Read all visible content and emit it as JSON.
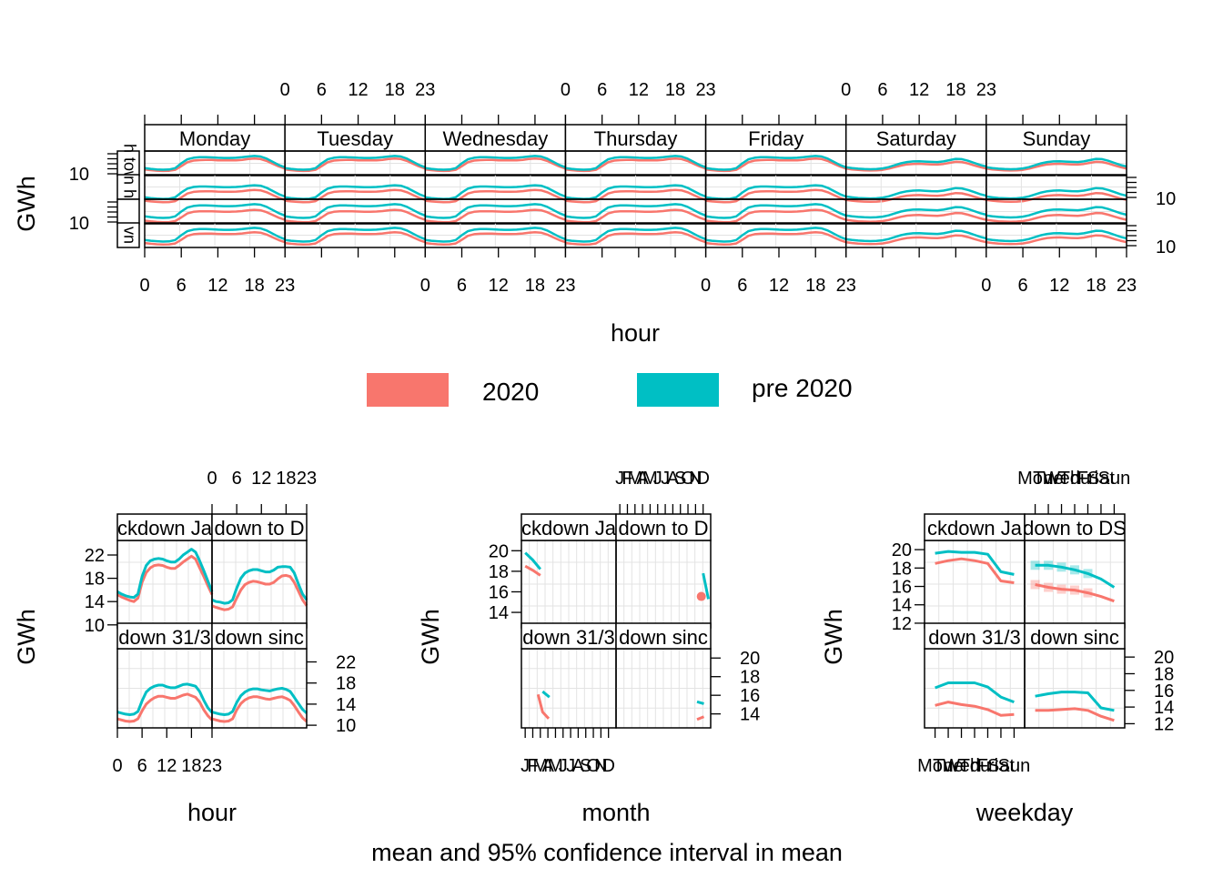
{
  "colors": {
    "y2020": "#F8766D",
    "pre2020": "#00BFC4",
    "strip_bg": "#ffffff",
    "grid": "#e3e3e3"
  },
  "legend": {
    "items": [
      {
        "label": "2020",
        "color": "#F8766D"
      },
      {
        "label": "pre 2020",
        "color": "#00BFC4"
      }
    ]
  },
  "caption": "mean and 95% confidence interval in mean",
  "chart_data": [
    {
      "id": "top",
      "type": "line",
      "xlabel": "hour",
      "ylabel": "GWh",
      "x_ticks": [
        0,
        6,
        12,
        18,
        23
      ],
      "y_tick_labels": [
        "10"
      ],
      "columns": [
        "Monday",
        "Tuesday",
        "Wednesday",
        "Thursday",
        "Friday",
        "Saturday",
        "Sunday"
      ],
      "rows": [
        {
          "strip_label": "h tow"
        },
        {
          "strip_label": "n h"
        },
        {
          "strip_label": ""
        },
        {
          "strip_label": "vn"
        }
      ],
      "series": [
        {
          "name": "2020",
          "color": "#F8766D"
        },
        {
          "name": "pre 2020",
          "color": "#00BFC4"
        }
      ],
      "profiles": {
        "weekday_pre": [
          15,
          14.5,
          14.2,
          14,
          14.1,
          15,
          18,
          20.5,
          21.5,
          21.8,
          21.8,
          21.7,
          21.5,
          21.4,
          21.4,
          21.5,
          21.8,
          22.3,
          22.6,
          22.3,
          21,
          19,
          17,
          15.5
        ],
        "weekday_2020": [
          14.5,
          14,
          13.7,
          13.5,
          13.6,
          14.2,
          16.5,
          19,
          20,
          20.3,
          20.4,
          20.4,
          20.2,
          20.1,
          20.1,
          20.2,
          20.5,
          21,
          21.3,
          21,
          19.8,
          18,
          16.3,
          15
        ],
        "weekend_pre": [
          15.5,
          15,
          14.6,
          14.4,
          14.3,
          14.4,
          14.8,
          15.6,
          16.8,
          18,
          18.8,
          19.2,
          19.3,
          19.1,
          18.9,
          18.8,
          19.2,
          20,
          20.8,
          20.6,
          19.6,
          18.3,
          17,
          16
        ],
        "weekend_2020": [
          15,
          14.5,
          14.1,
          13.9,
          13.8,
          13.9,
          14.2,
          14.9,
          15.9,
          16.9,
          17.6,
          17.9,
          18,
          17.8,
          17.6,
          17.5,
          17.9,
          18.6,
          19.3,
          19.1,
          18.2,
          17,
          15.9,
          15
        ]
      }
    },
    {
      "id": "hour",
      "type": "line",
      "xlabel": "hour",
      "ylabel": "GWh",
      "x_ticks": [
        0,
        6,
        12,
        18,
        23
      ],
      "y_ticks_left": [
        10,
        14,
        18,
        22
      ],
      "y_ticks_right": [
        10,
        14,
        18,
        22
      ],
      "strips": [
        "ckdown Ja",
        "down to D",
        "down 31/3",
        "down sinc"
      ],
      "series": [
        {
          "name": "2020",
          "color": "#F8766D"
        },
        {
          "name": "pre 2020",
          "color": "#00BFC4"
        }
      ],
      "panels": {
        "top_left": {
          "pre": [
            15.7,
            15.3,
            15,
            14.8,
            14.7,
            15.3,
            18.3,
            20.2,
            21,
            21.3,
            21.4,
            21.3,
            21,
            20.8,
            20.8,
            21.3,
            22,
            22.5,
            23,
            22.5,
            21,
            19.3,
            17.5,
            15.7
          ],
          "y2020": [
            15.2,
            14.8,
            14.5,
            14.2,
            14,
            14.6,
            17.3,
            19,
            19.8,
            20.2,
            20.3,
            20.2,
            19.9,
            19.7,
            19.7,
            20.2,
            20.8,
            21.3,
            21.8,
            21.3,
            19.8,
            18.3,
            16.7,
            15.2
          ]
        },
        "top_right": {
          "pre": [
            14.3,
            14,
            13.9,
            13.7,
            13.8,
            14.3,
            16.3,
            18,
            18.9,
            19.3,
            19.5,
            19.5,
            19.3,
            19.1,
            19.1,
            19.4,
            19.9,
            20,
            20,
            19.9,
            18.9,
            17,
            15.3,
            14.3
          ],
          "y2020": [
            13.3,
            13,
            12.8,
            12.6,
            12.7,
            13.1,
            14.6,
            16,
            16.9,
            17.3,
            17.5,
            17.4,
            17.2,
            17,
            17,
            17.3,
            17.9,
            18.4,
            18.5,
            18.3,
            17.3,
            15.8,
            14.3,
            13.3
          ]
        },
        "bottom_left": {
          "pre": [
            12.5,
            12.3,
            12.1,
            12,
            12.1,
            12.6,
            14.6,
            16.3,
            17,
            17.4,
            17.6,
            17.6,
            17.3,
            17.1,
            17.1,
            17.4,
            17.7,
            17.8,
            17.6,
            17.4,
            16.4,
            14.7,
            13.3,
            12.4
          ],
          "y2020": [
            11.2,
            11,
            10.8,
            10.7,
            10.8,
            11.2,
            12.7,
            14,
            14.7,
            15.2,
            15.5,
            15.5,
            15.3,
            15.1,
            15.1,
            15.4,
            15.7,
            15.9,
            15.6,
            15.3,
            14.4,
            12.9,
            11.8,
            11
          ]
        },
        "bottom_right": {
          "pre": [
            12.5,
            12.3,
            12.1,
            12,
            12.1,
            12.6,
            14.3,
            15.6,
            16.3,
            16.7,
            16.9,
            16.9,
            16.7,
            16.6,
            16.5,
            16.7,
            16.9,
            17,
            16.8,
            16.4,
            15.3,
            14.1,
            13,
            12.3
          ],
          "y2020": [
            11.2,
            11,
            10.8,
            10.7,
            10.8,
            11.2,
            12.9,
            14.1,
            14.8,
            15.2,
            15.4,
            15.4,
            15.2,
            15,
            14.9,
            15.1,
            15.3,
            15.4,
            15.1,
            14.7,
            13.7,
            12.5,
            11.4,
            10.7
          ]
        }
      }
    },
    {
      "id": "month",
      "type": "line",
      "xlabel": "month",
      "ylabel": "GWh",
      "x_tick_labels": [
        "J",
        "F",
        "M",
        "A",
        "M",
        "J",
        "J",
        "A",
        "S",
        "O",
        "N",
        "D"
      ],
      "y_ticks_left": [
        14,
        16,
        18,
        20
      ],
      "y_ticks_right": [
        14,
        16,
        18,
        20
      ],
      "strips": [
        "ckdown Ja",
        "down to D",
        "down 31/3",
        "down sinc"
      ],
      "series": [
        {
          "name": "2020",
          "color": "#F8766D"
        },
        {
          "name": "pre 2020",
          "color": "#00BFC4"
        }
      ],
      "panels": {
        "top_left": {
          "pre": [
            [
              1,
              19.8
            ],
            [
              2,
              19.1
            ],
            [
              3,
              18.2
            ]
          ],
          "y2020": [
            [
              1,
              18.5
            ],
            [
              2,
              18.1
            ],
            [
              3,
              17.6
            ]
          ]
        },
        "top_right": {
          "pre": [
            [
              12,
              17.8
            ],
            [
              12.7,
              15.3
            ]
          ],
          "y2020": [
            [
              12,
              15.6
            ],
            [
              12.3,
              15.5
            ]
          ]
        },
        "bottom_left": {
          "pre": [
            [
              3.3,
              16.4
            ],
            [
              4.2,
              15.8
            ]
          ],
          "y2020": [
            [
              2.7,
              16.1
            ],
            [
              3.3,
              14.2
            ],
            [
              4.1,
              13.5
            ]
          ]
        },
        "bottom_right": {
          "pre": [
            [
              11.2,
              15.3
            ],
            [
              12.1,
              15.1
            ]
          ],
          "y2020": [
            [
              11.2,
              13.4
            ],
            [
              12.1,
              13.7
            ]
          ]
        }
      }
    },
    {
      "id": "weekday",
      "type": "line",
      "xlabel": "weekday",
      "ylabel": "GWh",
      "x_tick_labels": [
        "Mon",
        "Tue",
        "Wed",
        "Thu",
        "Fri",
        "Sat",
        "Sun"
      ],
      "y_ticks_left": [
        12,
        14,
        16,
        18,
        20
      ],
      "y_ticks_right": [
        12,
        14,
        16,
        18,
        20
      ],
      "strips": [
        "ckdown Ja",
        "down to DS",
        "down 31/3",
        "down sinc"
      ],
      "series": [
        {
          "name": "2020",
          "color": "#F8766D"
        },
        {
          "name": "pre 2020",
          "color": "#00BFC4"
        }
      ],
      "panels": {
        "top_left": {
          "pre": [
            19.6,
            19.8,
            19.7,
            19.7,
            19.5,
            17.6,
            17.3
          ],
          "y2020": [
            18.5,
            18.8,
            19,
            18.8,
            18.5,
            16.6,
            16.4
          ]
        },
        "top_right": {
          "pre": [
            18.3,
            18.3,
            18.1,
            17.8,
            17.4,
            16.8,
            15.9
          ],
          "y2020": [
            16.2,
            15.9,
            15.7,
            15.6,
            15.3,
            14.9,
            14.4
          ]
        },
        "bottom_left": {
          "pre": [
            16.3,
            16.9,
            16.9,
            16.9,
            16.4,
            15.2,
            14.6
          ],
          "y2020": [
            14.2,
            14.6,
            14.3,
            14.1,
            13.7,
            13,
            13.1
          ]
        },
        "bottom_right": {
          "pre": [
            15.3,
            15.6,
            15.8,
            15.8,
            15.7,
            13.9,
            13.6
          ],
          "y2020": [
            13.6,
            13.6,
            13.7,
            13.8,
            13.6,
            12.9,
            12.4
          ]
        }
      }
    }
  ]
}
